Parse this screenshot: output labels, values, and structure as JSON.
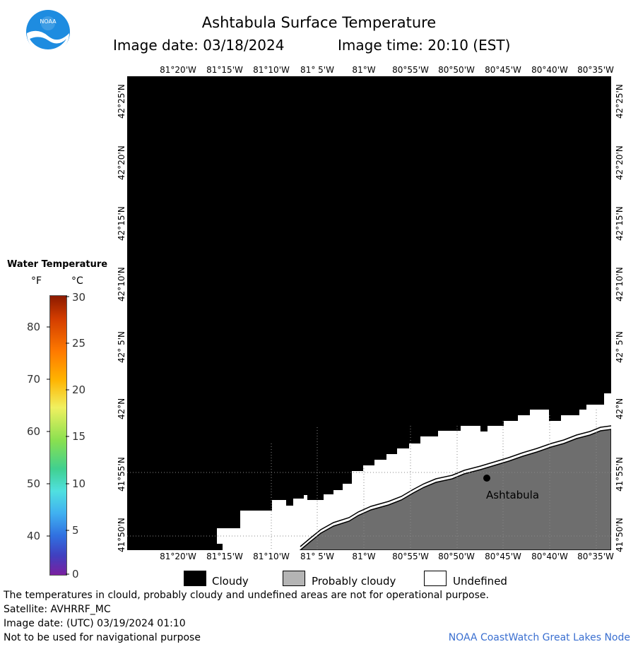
{
  "header": {
    "title": "Ashtabula Surface Temperature",
    "image_date": "Image date: 03/18/2024",
    "image_time": "Image time: 20:10 (EST)"
  },
  "map": {
    "lon_labels": [
      "81°20'W",
      "81°15'W",
      "81°10'W",
      "81° 5'W",
      "81°W",
      "80°55'W",
      "80°50'W",
      "80°45'W",
      "80°40'W",
      "80°35'W"
    ],
    "lat_labels": [
      "42°25'N",
      "42°20'N",
      "42°15'N",
      "42°10'N",
      "42° 5'N",
      "42°N",
      "41°55'N",
      "41°50'N"
    ],
    "city_label": "Ashtabula",
    "colors": {
      "cloudy": "#000000",
      "probably_cloudy": "#6e6e6e",
      "undefined": "#ffffff"
    }
  },
  "legend": {
    "title": "Water Temperature",
    "unit_f": "°F",
    "unit_c": "°C",
    "fahrenheit_ticks": [
      "80",
      "70",
      "60",
      "50",
      "40"
    ],
    "celsius_ticks": [
      "30",
      "25",
      "20",
      "15",
      "10",
      "5",
      "0"
    ]
  },
  "key": {
    "cloudy": "Cloudy",
    "probably_cloudy": "Probably cloudy",
    "undefined": "Undefined"
  },
  "footer": {
    "disclaimer": "The temperatures in clould, probably cloudy and undefined areas are not for operational purpose.",
    "satellite": "Satellite: AVHRRF_MC",
    "utc_date": "Image date: (UTC) 03/19/2024  01:10",
    "navigation": "Not to be used for navigational purpose",
    "credit": "NOAA CoastWatch Great Lakes Node"
  }
}
